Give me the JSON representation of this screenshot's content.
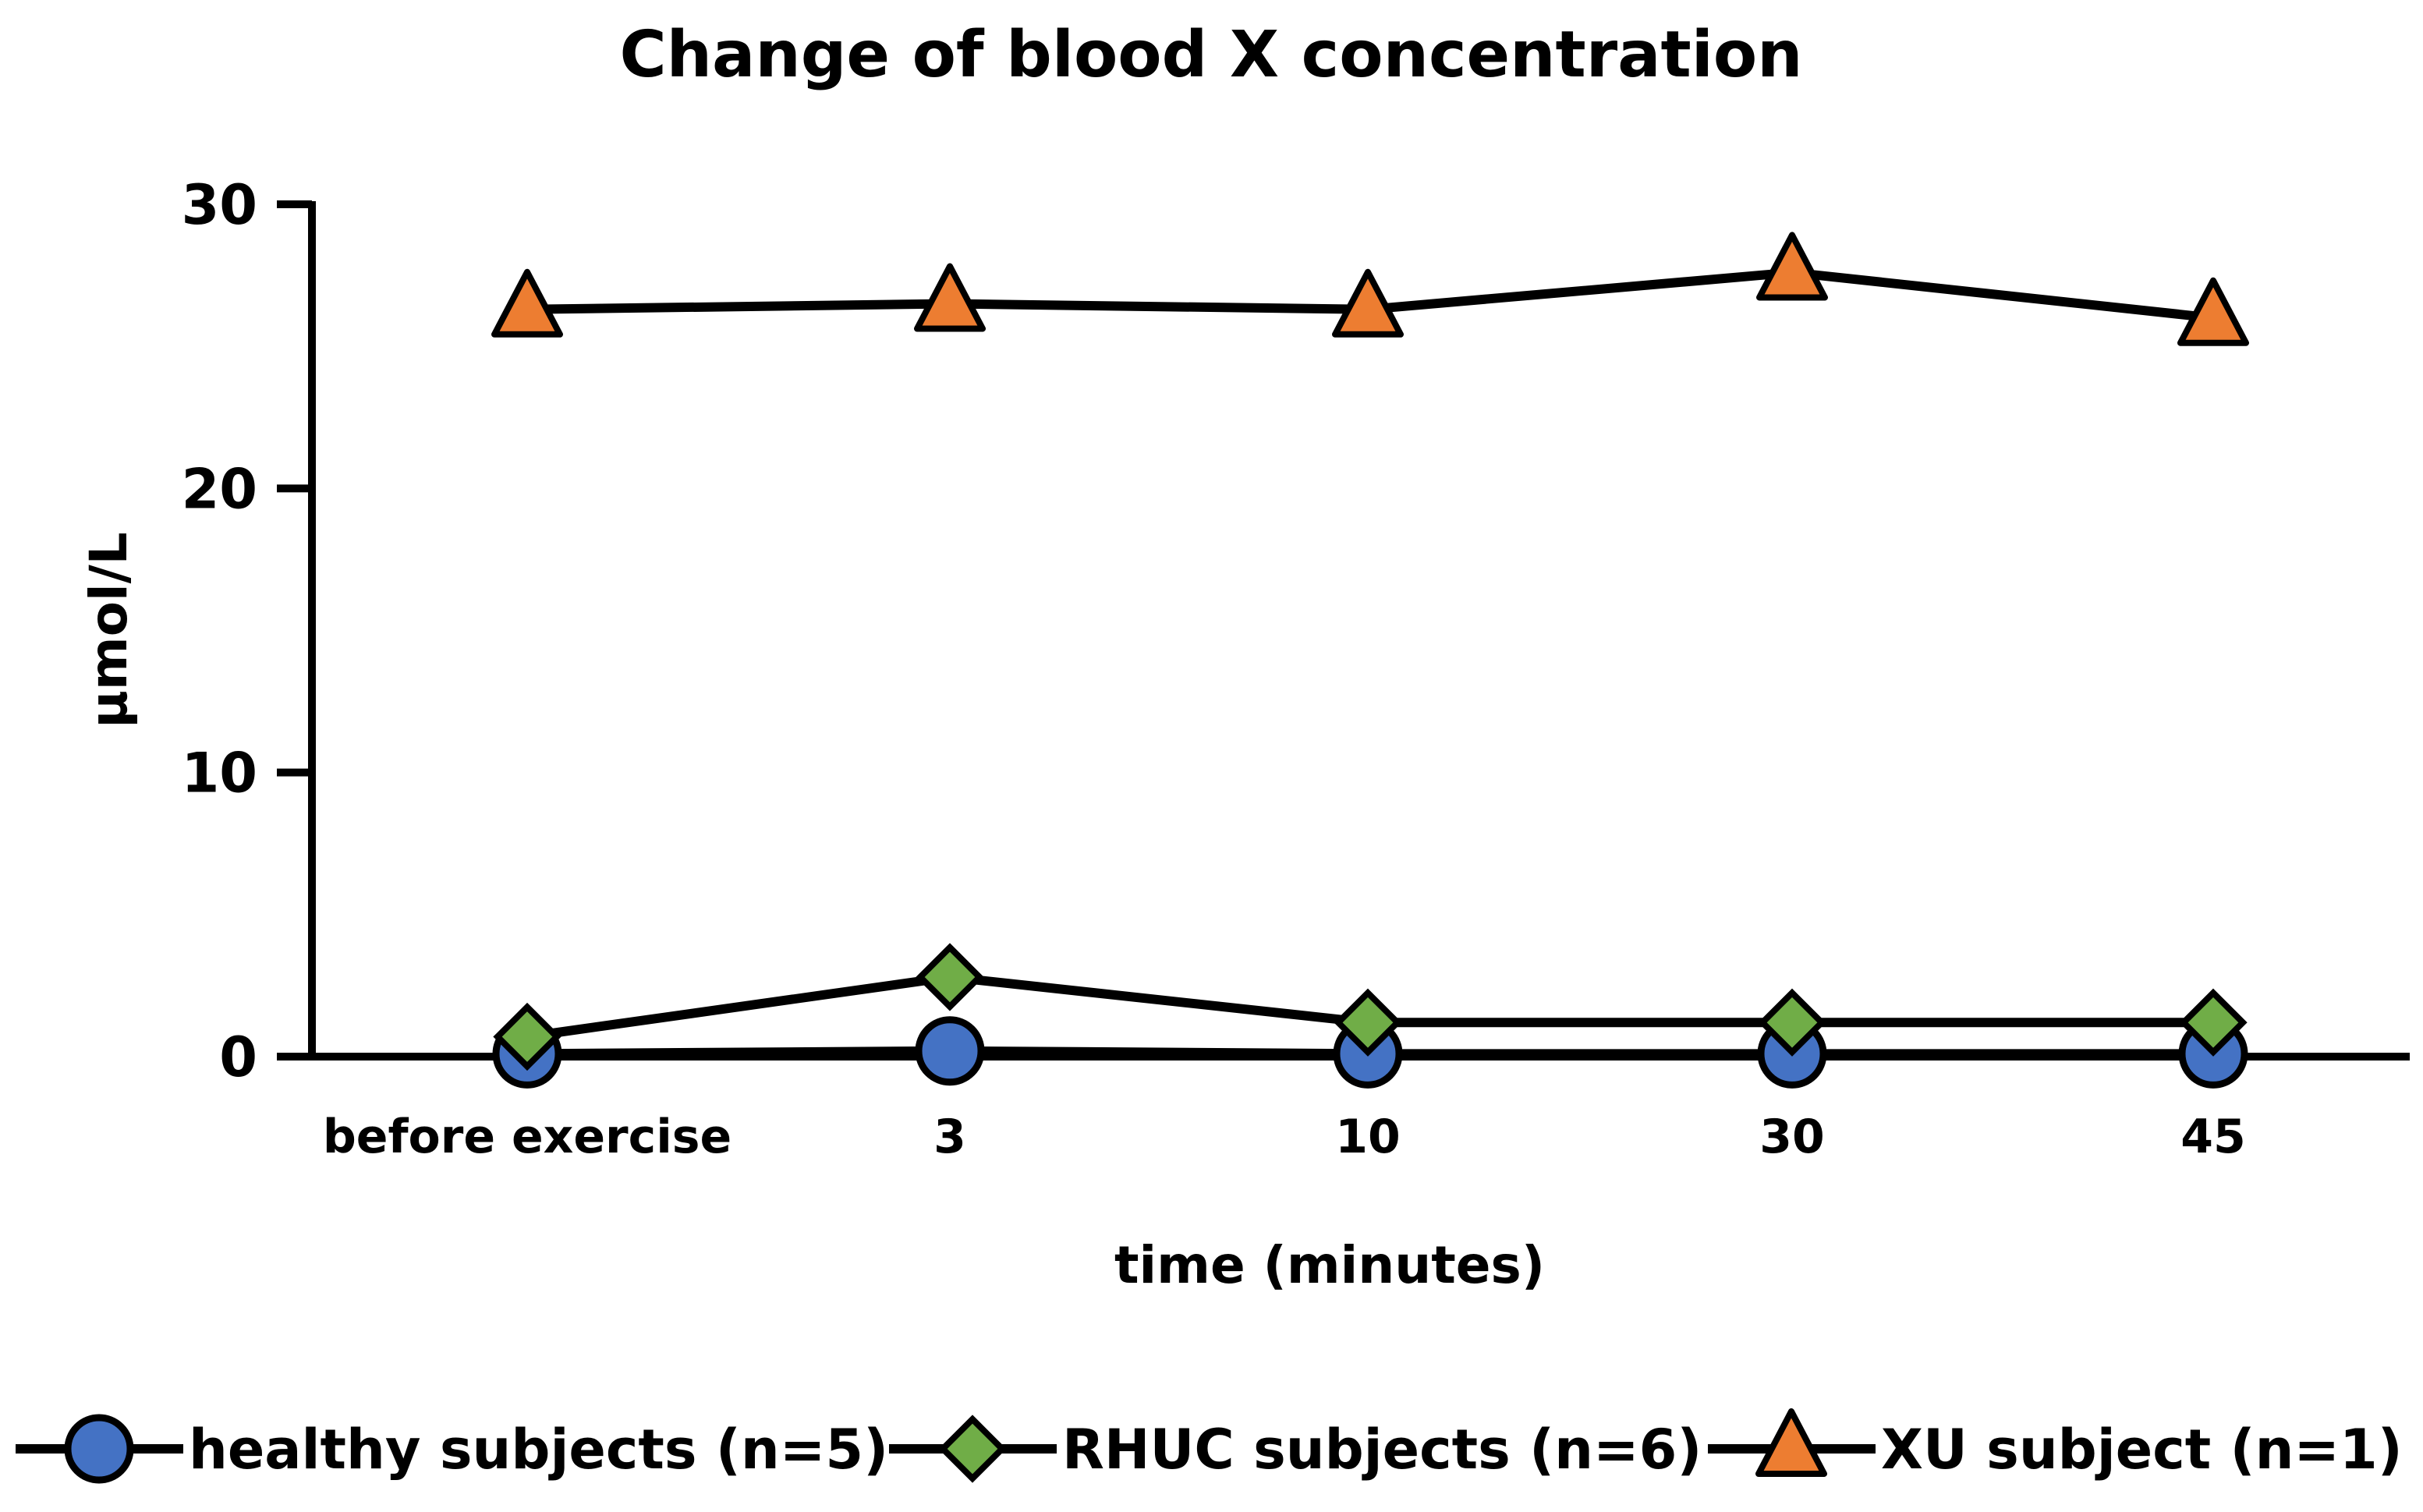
{
  "chart_data": {
    "type": "line",
    "title": "Change of blood X concentration",
    "xlabel": "time (minutes)",
    "ylabel": "µmol/L",
    "categories": [
      "before exercise",
      "3",
      "10",
      "30",
      "45"
    ],
    "ylim": [
      0,
      30
    ],
    "yticks": [
      0,
      10,
      20,
      30
    ],
    "grid": false,
    "legend_position": "bottom",
    "series": [
      {
        "name": "healthy subjects (n=5)",
        "marker": "circle",
        "color": "#4472C4",
        "values": [
          0.1,
          0.2,
          0.1,
          0.1,
          0.1
        ]
      },
      {
        "name": "RHUC subjects (n=6)",
        "marker": "diamond",
        "color": "#70AD47",
        "values": [
          0.7,
          2.8,
          1.2,
          1.2,
          1.2
        ]
      },
      {
        "name": "XU subject (n=1)",
        "marker": "triangle",
        "color": "#ED7D31",
        "values": [
          26.3,
          26.5,
          26.3,
          27.6,
          26.0
        ]
      }
    ]
  }
}
